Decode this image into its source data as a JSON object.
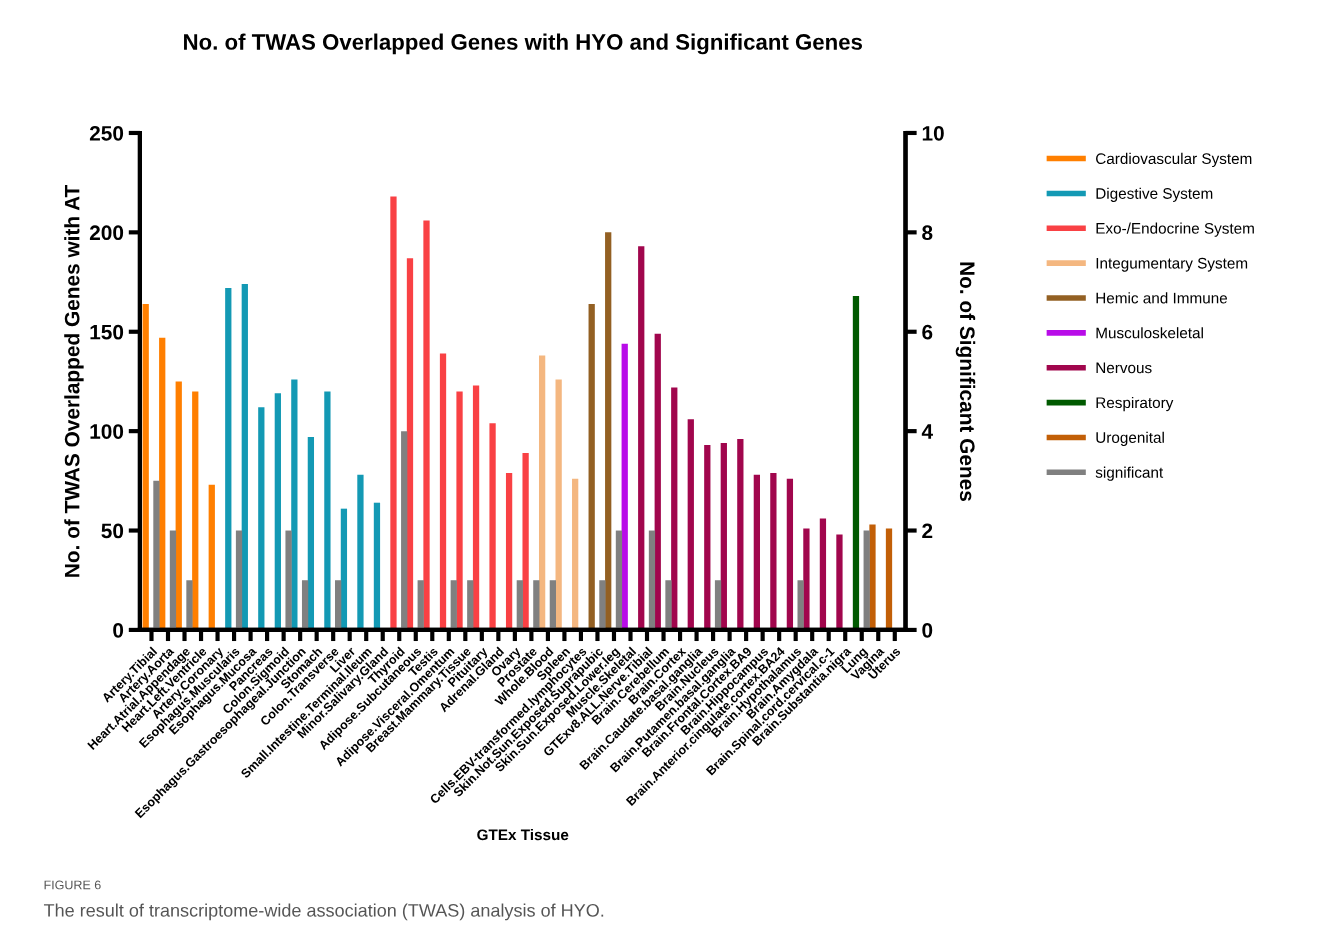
{
  "chart_data": {
    "type": "bar",
    "title": "No. of TWAS Overlapped Genes with HYO and Significant Genes",
    "xlabel": "GTEx Tissue",
    "ylabel": "No. of TWAS Overlapped Genes with AT",
    "y2label": "No. of Significant Genes",
    "categories": [
      "Artery.Tibial",
      "Artery.Aorta",
      "Heart.Atrial.Appendage",
      "Heart.Left.Ventricle",
      "Artery.Coronary",
      "Esophagus.Muscularis",
      "Esophagus.Mucosa",
      "Pancreas",
      "Colon.Sigmoid",
      "Esophagus.Gastroesophageal.Junction",
      "Stomach",
      "Colon.Transverse",
      "Liver",
      "Small.Intestine.Terminal.Ileum",
      "Minor.Salivary.Gland",
      "Thyroid",
      "Adipose.Subcutaneous",
      "Testis",
      "Adipose.Visceral.Omentum",
      "Breast.Mammary.Tissue",
      "Pituitary",
      "Adrenal.Gland",
      "Ovary",
      "Prostate",
      "Whole.Blood",
      "Spleen",
      "Cells.EBV-transformed.lymphocytes",
      "Skin.Not.Sun.Exposed.Suprapubic",
      "Skin.Sun.Exposed.Lower.leg",
      "Muscle.Skeletal",
      "GTExv8.ALL.Nerve.Tibial",
      "Brain.Cerebellum",
      "Brain.Cortex",
      "Brain.Caudate.basal.ganglia",
      "Brain.Nucleus",
      "Brain.Putamen.basal.ganglia",
      "Brain.Frontal.Cortex.BA9",
      "Brain.Hippocampus",
      "Brain.Anterior.cingulate.cortex.BA24",
      "Brain.Hypothalamus",
      "Brain.Amygdala",
      "Brain.Spinal.cord.cervical.c-1",
      "Brain.Substantia.nigra",
      "Lung",
      "Vagina",
      "Uterus"
    ],
    "series": [
      {
        "name": "Cardiovascular System",
        "color": "#ff7f00",
        "values": [
          164,
          147,
          125,
          120,
          73,
          null,
          null,
          null,
          null,
          null,
          null,
          null,
          null,
          null,
          null,
          null,
          null,
          null,
          null,
          null,
          null,
          null,
          null,
          null,
          null,
          null,
          null,
          null,
          null,
          null,
          null,
          null,
          null,
          null,
          null,
          null,
          null,
          null,
          null,
          null,
          null,
          null,
          null,
          null,
          null,
          null
        ]
      },
      {
        "name": "Digestive System",
        "color": "#1399b4",
        "values": [
          null,
          null,
          null,
          null,
          null,
          172,
          174,
          112,
          119,
          126,
          97,
          120,
          61,
          78,
          64,
          null,
          null,
          null,
          null,
          null,
          null,
          null,
          null,
          null,
          null,
          null,
          null,
          null,
          null,
          null,
          null,
          null,
          null,
          null,
          null,
          null,
          null,
          null,
          null,
          null,
          null,
          null,
          null,
          null,
          null,
          null
        ]
      },
      {
        "name": "Exo-/Endocrine System",
        "color": "#f94144",
        "values": [
          null,
          null,
          null,
          null,
          null,
          null,
          null,
          null,
          null,
          null,
          null,
          null,
          null,
          null,
          null,
          218,
          187,
          206,
          139,
          120,
          123,
          104,
          79,
          89,
          null,
          null,
          null,
          null,
          null,
          null,
          null,
          null,
          null,
          null,
          null,
          null,
          null,
          null,
          null,
          null,
          null,
          null,
          null,
          null,
          null,
          null
        ]
      },
      {
        "name": "Integumentary System",
        "color": "#f4b780",
        "values": [
          null,
          null,
          null,
          null,
          null,
          null,
          null,
          null,
          null,
          null,
          null,
          null,
          null,
          null,
          null,
          null,
          null,
          null,
          null,
          null,
          null,
          null,
          null,
          null,
          138,
          126,
          76,
          null,
          null,
          null,
          null,
          null,
          null,
          null,
          null,
          null,
          null,
          null,
          null,
          null,
          null,
          null,
          null,
          null,
          null,
          null
        ]
      },
      {
        "name": "Hemic and Immune",
        "color": "#936023",
        "values": [
          null,
          null,
          null,
          null,
          null,
          null,
          null,
          null,
          null,
          null,
          null,
          null,
          null,
          null,
          null,
          null,
          null,
          null,
          null,
          null,
          null,
          null,
          null,
          null,
          null,
          null,
          null,
          164,
          200,
          null,
          null,
          null,
          null,
          null,
          null,
          null,
          null,
          null,
          null,
          null,
          null,
          null,
          null,
          null,
          null,
          null
        ]
      },
      {
        "name": "Musculoskeletal",
        "color": "#b80ce8",
        "values": [
          null,
          null,
          null,
          null,
          null,
          null,
          null,
          null,
          null,
          null,
          null,
          null,
          null,
          null,
          null,
          null,
          null,
          null,
          null,
          null,
          null,
          null,
          null,
          null,
          null,
          null,
          null,
          null,
          null,
          144,
          null,
          null,
          null,
          null,
          null,
          null,
          null,
          null,
          null,
          null,
          null,
          null,
          null,
          null,
          null,
          null
        ]
      },
      {
        "name": "Nervous",
        "color": "#a1064d",
        "values": [
          null,
          null,
          null,
          null,
          null,
          null,
          null,
          null,
          null,
          null,
          null,
          null,
          null,
          null,
          null,
          null,
          null,
          null,
          null,
          null,
          null,
          null,
          null,
          null,
          null,
          null,
          null,
          null,
          null,
          null,
          193,
          149,
          122,
          106,
          93,
          94,
          96,
          78,
          79,
          76,
          51,
          56,
          48,
          null,
          null,
          null
        ]
      },
      {
        "name": "Respiratory",
        "color": "#005a00",
        "values": [
          null,
          null,
          null,
          null,
          null,
          null,
          null,
          null,
          null,
          null,
          null,
          null,
          null,
          null,
          null,
          null,
          null,
          null,
          null,
          null,
          null,
          null,
          null,
          null,
          null,
          null,
          null,
          null,
          null,
          null,
          null,
          null,
          null,
          null,
          null,
          null,
          null,
          null,
          null,
          null,
          null,
          null,
          null,
          168,
          null,
          null
        ]
      },
      {
        "name": "Urogenital",
        "color": "#c25f07",
        "values": [
          null,
          null,
          null,
          null,
          null,
          null,
          null,
          null,
          null,
          null,
          null,
          null,
          null,
          null,
          null,
          null,
          null,
          null,
          null,
          null,
          null,
          null,
          null,
          null,
          null,
          null,
          null,
          null,
          null,
          null,
          null,
          null,
          null,
          null,
          null,
          null,
          null,
          null,
          null,
          null,
          null,
          null,
          null,
          null,
          53,
          51
        ]
      },
      {
        "name": "significant",
        "color": "#808080",
        "axis": "y2",
        "values": [
          3,
          2,
          1,
          null,
          null,
          2,
          null,
          null,
          2,
          1,
          null,
          1,
          null,
          null,
          null,
          4,
          1,
          null,
          1,
          1,
          null,
          null,
          1,
          1,
          1,
          null,
          null,
          1,
          2,
          null,
          2,
          1,
          null,
          null,
          1,
          null,
          null,
          null,
          null,
          1,
          null,
          null,
          null,
          2,
          null,
          null
        ]
      }
    ],
    "ylim": [
      0,
      250
    ],
    "yticks": [
      0,
      50,
      100,
      150,
      200,
      250
    ],
    "y2lim": [
      0,
      10
    ],
    "y2ticks": [
      0,
      2,
      4,
      6,
      8,
      10
    ],
    "legend": "right",
    "grid": false,
    "annotations": [
      "FIGURE 6",
      "The result of transcriptome-wide association (TWAS) analysis of HYO."
    ]
  }
}
